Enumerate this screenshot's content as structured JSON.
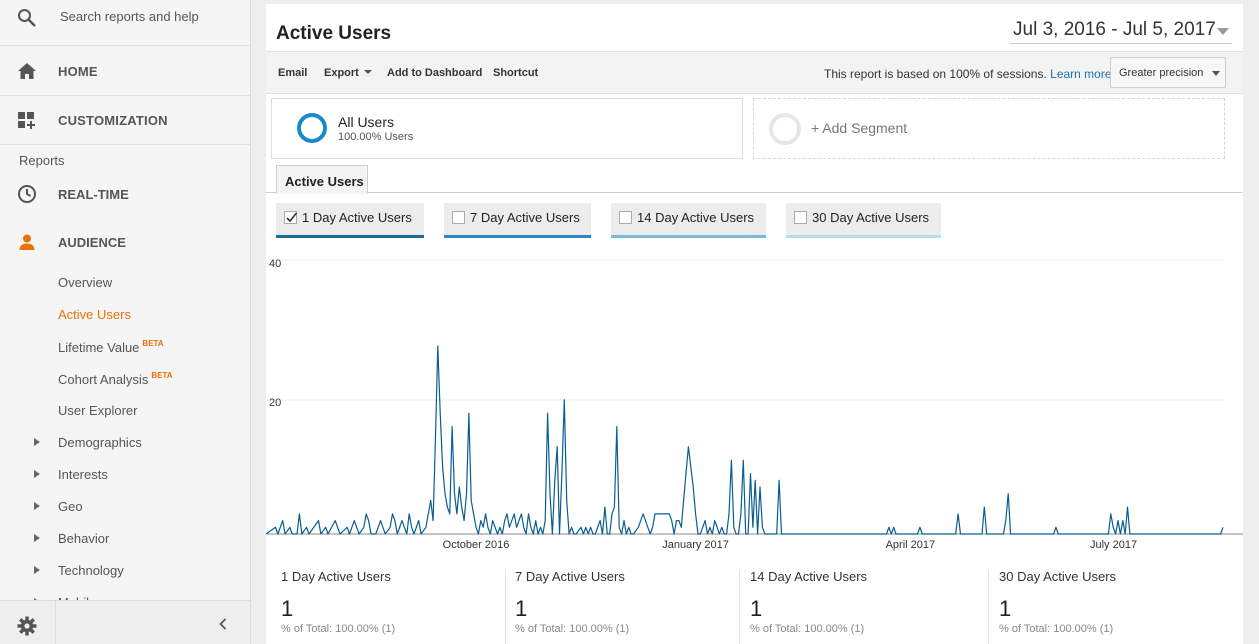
{
  "sidebar": {
    "search_placeholder": "Search reports and help",
    "home_label": "HOME",
    "customization_label": "CUSTOMIZATION",
    "reports_heading": "Reports",
    "realtime_label": "REAL-TIME",
    "audience_label": "AUDIENCE",
    "audience_items": {
      "overview": "Overview",
      "active_users": "Active Users",
      "lifetime_value": "Lifetime Value",
      "lifetime_value_badge": "BETA",
      "cohort_analysis": "Cohort Analysis",
      "cohort_analysis_badge": "BETA",
      "user_explorer": "User Explorer",
      "demographics": "Demographics",
      "interests": "Interests",
      "geo": "Geo",
      "behavior": "Behavior",
      "technology": "Technology",
      "mobile": "Mobile"
    },
    "accent_color": "#e8710a"
  },
  "header": {
    "title": "Active Users",
    "date_range": "Jul 3, 2016 - Jul 5, 2017"
  },
  "toolbar": {
    "email": "Email",
    "export": "Export",
    "add_to_dashboard": "Add to Dashboard",
    "shortcut": "Shortcut",
    "sessions_note": "This report is based on 100% of sessions.",
    "learn_more": "Learn more",
    "precision": "Greater precision"
  },
  "segments": {
    "all_users_name": "All Users",
    "all_users_sub": "100.00% Users",
    "add_segment": "+ Add Segment"
  },
  "tab": {
    "label": "Active Users"
  },
  "metrics": [
    {
      "label": "1 Day Active Users",
      "checked": true,
      "color": "#1c6a9a"
    },
    {
      "label": "7 Day Active Users",
      "checked": false,
      "color": "#2b87c0"
    },
    {
      "label": "14 Day Active Users",
      "checked": false,
      "color": "#7ab8de"
    },
    {
      "label": "30 Day Active Users",
      "checked": false,
      "color": "#b9d9ee"
    }
  ],
  "chart_data": {
    "type": "line",
    "title": "",
    "xlabel": "",
    "ylabel": "",
    "ylim": [
      0,
      40
    ],
    "yticks": [
      "40",
      "20"
    ],
    "xticks": [
      "October 2016",
      "January 2017",
      "April 2017",
      "July 2017"
    ],
    "grid": true,
    "series": [
      {
        "name": "1 Day Active Users",
        "color": "#0b5d8f",
        "points": [
          [
            0,
            0
          ],
          [
            4,
            1
          ],
          [
            5,
            0
          ],
          [
            7,
            2
          ],
          [
            8,
            0
          ],
          [
            10,
            1
          ],
          [
            11,
            0
          ],
          [
            13,
            0
          ],
          [
            14,
            3
          ],
          [
            15,
            0
          ],
          [
            17,
            1
          ],
          [
            18,
            0
          ],
          [
            22,
            2
          ],
          [
            23,
            0
          ],
          [
            25,
            1
          ],
          [
            26,
            0
          ],
          [
            29,
            2
          ],
          [
            30,
            1
          ],
          [
            31,
            0
          ],
          [
            34,
            1
          ],
          [
            35,
            0
          ],
          [
            37,
            2
          ],
          [
            38,
            1
          ],
          [
            39,
            0
          ],
          [
            41,
            1
          ],
          [
            42,
            3
          ],
          [
            43,
            2
          ],
          [
            44,
            0
          ],
          [
            46,
            0
          ],
          [
            48,
            2
          ],
          [
            49,
            1
          ],
          [
            50,
            0
          ],
          [
            52,
            1
          ],
          [
            53,
            3
          ],
          [
            54,
            2
          ],
          [
            55,
            0
          ],
          [
            57,
            2
          ],
          [
            58,
            1
          ],
          [
            59,
            0
          ],
          [
            60,
            3
          ],
          [
            61,
            1
          ],
          [
            62,
            0
          ],
          [
            64,
            2
          ],
          [
            65,
            0
          ],
          [
            67,
            1
          ],
          [
            68,
            3
          ],
          [
            69,
            5
          ],
          [
            70,
            2
          ],
          [
            71,
            14
          ],
          [
            72,
            28
          ],
          [
            73,
            18
          ],
          [
            74,
            10
          ],
          [
            75,
            6
          ],
          [
            76,
            4
          ],
          [
            77,
            3
          ],
          [
            78,
            16
          ],
          [
            79,
            6
          ],
          [
            80,
            3
          ],
          [
            81,
            7
          ],
          [
            82,
            4
          ],
          [
            83,
            2
          ],
          [
            84,
            6
          ],
          [
            85,
            18
          ],
          [
            86,
            5
          ],
          [
            87,
            3
          ],
          [
            88,
            1
          ],
          [
            89,
            0
          ],
          [
            90,
            2
          ],
          [
            91,
            1
          ],
          [
            92,
            3
          ],
          [
            93,
            1
          ],
          [
            94,
            0
          ],
          [
            95,
            2
          ],
          [
            96,
            1
          ],
          [
            97,
            0
          ],
          [
            98,
            1
          ],
          [
            99,
            0
          ],
          [
            100,
            2
          ],
          [
            101,
            3
          ],
          [
            102,
            1
          ],
          [
            103,
            2
          ],
          [
            104,
            3
          ],
          [
            105,
            1
          ],
          [
            106,
            2
          ],
          [
            107,
            3
          ],
          [
            108,
            1
          ],
          [
            109,
            0
          ],
          [
            110,
            3
          ],
          [
            111,
            1
          ],
          [
            112,
            0
          ],
          [
            113,
            2
          ],
          [
            114,
            0
          ],
          [
            115,
            1
          ],
          [
            116,
            0
          ],
          [
            117,
            2
          ],
          [
            118,
            18
          ],
          [
            119,
            6
          ],
          [
            120,
            0
          ],
          [
            121,
            8
          ],
          [
            122,
            13
          ],
          [
            123,
            0
          ],
          [
            124,
            9
          ],
          [
            125,
            20
          ],
          [
            126,
            5
          ],
          [
            127,
            0
          ],
          [
            128,
            1
          ],
          [
            129,
            0
          ],
          [
            130,
            0
          ],
          [
            132,
            1
          ],
          [
            133,
            0
          ],
          [
            134,
            1
          ],
          [
            135,
            0
          ],
          [
            136,
            1
          ],
          [
            137,
            0
          ],
          [
            138,
            0
          ],
          [
            140,
            2
          ],
          [
            141,
            0
          ],
          [
            142,
            4
          ],
          [
            143,
            0
          ],
          [
            144,
            0
          ],
          [
            145,
            3
          ],
          [
            146,
            4
          ],
          [
            147,
            16
          ],
          [
            148,
            1
          ],
          [
            149,
            0
          ],
          [
            150,
            2
          ],
          [
            151,
            0
          ],
          [
            152,
            1
          ],
          [
            153,
            0
          ],
          [
            154,
            0
          ],
          [
            156,
            1
          ],
          [
            157,
            2
          ],
          [
            158,
            3
          ],
          [
            159,
            2
          ],
          [
            160,
            1
          ],
          [
            161,
            0
          ],
          [
            162,
            1
          ],
          [
            163,
            3
          ],
          [
            164,
            3
          ],
          [
            165,
            3
          ],
          [
            166,
            3
          ],
          [
            167,
            3
          ],
          [
            168,
            3
          ],
          [
            169,
            3
          ],
          [
            170,
            2
          ],
          [
            171,
            0
          ],
          [
            172,
            2
          ],
          [
            173,
            2
          ],
          [
            174,
            1
          ],
          [
            175,
            5
          ],
          [
            176,
            9
          ],
          [
            177,
            13
          ],
          [
            178,
            10
          ],
          [
            179,
            7
          ],
          [
            180,
            3
          ],
          [
            181,
            0
          ],
          [
            182,
            0
          ],
          [
            183,
            1
          ],
          [
            184,
            2
          ],
          [
            185,
            0
          ],
          [
            186,
            1
          ],
          [
            187,
            0
          ],
          [
            188,
            2
          ],
          [
            189,
            1
          ],
          [
            190,
            0
          ],
          [
            191,
            1
          ],
          [
            192,
            0
          ],
          [
            193,
            0
          ],
          [
            194,
            3
          ],
          [
            195,
            11
          ],
          [
            196,
            1
          ],
          [
            197,
            0
          ],
          [
            198,
            0
          ],
          [
            199,
            3
          ],
          [
            200,
            11
          ],
          [
            201,
            0
          ],
          [
            202,
            0
          ],
          [
            203,
            9
          ],
          [
            204,
            1
          ],
          [
            205,
            8
          ],
          [
            206,
            0
          ],
          [
            207,
            7
          ],
          [
            208,
            1
          ],
          [
            209,
            0
          ],
          [
            214,
            0
          ],
          [
            215,
            8
          ],
          [
            216,
            0
          ],
          [
            217,
            0
          ],
          [
            260,
            0
          ],
          [
            261,
            1
          ],
          [
            262,
            0
          ],
          [
            263,
            1
          ],
          [
            264,
            0
          ],
          [
            273,
            0
          ],
          [
            274,
            1
          ],
          [
            275,
            0
          ],
          [
            289,
            0
          ],
          [
            290,
            3
          ],
          [
            291,
            0
          ],
          [
            300,
            0
          ],
          [
            301,
            4
          ],
          [
            302,
            0
          ],
          [
            309,
            0
          ],
          [
            310,
            2
          ],
          [
            311,
            6
          ],
          [
            312,
            0
          ],
          [
            330,
            0
          ],
          [
            331,
            1
          ],
          [
            332,
            0
          ],
          [
            353,
            0
          ],
          [
            354,
            3
          ],
          [
            355,
            1
          ],
          [
            356,
            0
          ],
          [
            357,
            2
          ],
          [
            358,
            0
          ],
          [
            359,
            2
          ],
          [
            360,
            0
          ],
          [
            361,
            4
          ],
          [
            362,
            0
          ],
          [
            363,
            0
          ],
          [
            370,
            0
          ],
          [
            400,
            0
          ],
          [
            401,
            1
          ]
        ]
      }
    ]
  },
  "summary": [
    {
      "label": "1 Day Active Users",
      "value": "1",
      "pct": "% of Total: 100.00% (1)"
    },
    {
      "label": "7 Day Active Users",
      "value": "1",
      "pct": "% of Total: 100.00% (1)"
    },
    {
      "label": "14 Day Active Users",
      "value": "1",
      "pct": "% of Total: 100.00% (1)"
    },
    {
      "label": "30 Day Active Users",
      "value": "1",
      "pct": "% of Total: 100.00% (1)"
    }
  ]
}
